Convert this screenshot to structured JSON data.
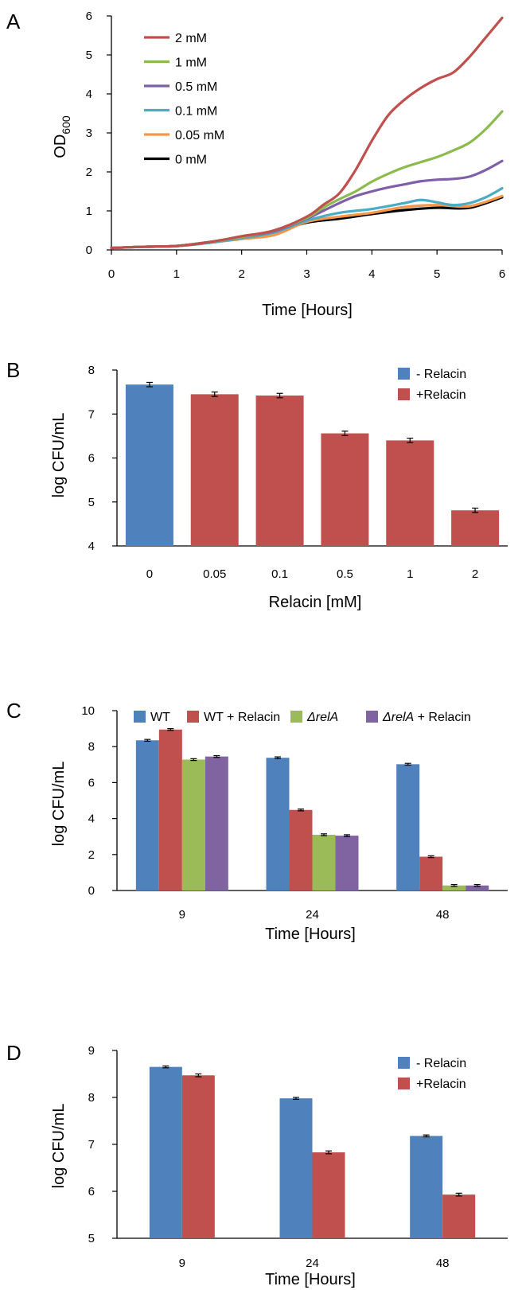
{
  "panels": [
    {
      "id": "panelA",
      "letter": "A"
    },
    {
      "id": "panelB",
      "letter": "B"
    },
    {
      "id": "panelC",
      "letter": "C"
    },
    {
      "id": "panelD",
      "letter": "D"
    }
  ],
  "chart_data": [
    {
      "panel": "A",
      "type": "line",
      "xlabel": "Time [Hours]",
      "ylabel": "OD",
      "ylabel_sub": "600",
      "xlim": [
        0,
        6
      ],
      "ylim": [
        0,
        6
      ],
      "xticks": [
        0,
        1,
        2,
        3,
        4,
        5,
        6
      ],
      "yticks": [
        0,
        1,
        2,
        3,
        4,
        5,
        6
      ],
      "grid": false,
      "legend_position": "top-left",
      "series": [
        {
          "name": "2 mM",
          "color": "#c0504d",
          "x": [
            0,
            0.5,
            1,
            1.5,
            2,
            2.5,
            3,
            3.25,
            3.5,
            3.75,
            4,
            4.25,
            4.5,
            4.75,
            5,
            5.25,
            5.5,
            5.75,
            6
          ],
          "y": [
            0.05,
            0.08,
            0.1,
            0.2,
            0.35,
            0.5,
            0.85,
            1.15,
            1.45,
            2.05,
            2.8,
            3.45,
            3.85,
            4.15,
            4.38,
            4.55,
            4.95,
            5.45,
            5.95
          ]
        },
        {
          "name": "1 mM",
          "color": "#8cba4f",
          "x": [
            0,
            0.5,
            1,
            1.5,
            2,
            2.5,
            3,
            3.25,
            3.5,
            3.75,
            4,
            4.25,
            4.5,
            4.75,
            5,
            5.25,
            5.5,
            5.75,
            6
          ],
          "y": [
            0.05,
            0.08,
            0.1,
            0.2,
            0.33,
            0.5,
            0.82,
            1.08,
            1.3,
            1.5,
            1.75,
            1.95,
            2.12,
            2.25,
            2.38,
            2.55,
            2.75,
            3.1,
            3.55
          ]
        },
        {
          "name": "0.5 mM",
          "color": "#7f5fa8",
          "x": [
            0,
            0.5,
            1,
            1.5,
            2,
            2.5,
            3,
            3.25,
            3.5,
            3.75,
            4,
            4.25,
            4.5,
            4.75,
            5,
            5.25,
            5.5,
            5.75,
            6
          ],
          "y": [
            0.05,
            0.08,
            0.1,
            0.2,
            0.33,
            0.48,
            0.8,
            1.0,
            1.2,
            1.38,
            1.5,
            1.6,
            1.68,
            1.76,
            1.8,
            1.82,
            1.88,
            2.05,
            2.28
          ]
        },
        {
          "name": "0.1 mM",
          "color": "#4bacc6",
          "x": [
            0,
            0.5,
            1,
            1.5,
            2,
            2.5,
            3,
            3.5,
            4,
            4.5,
            4.75,
            5,
            5.25,
            5.5,
            5.75,
            6
          ],
          "y": [
            0.05,
            0.08,
            0.1,
            0.18,
            0.3,
            0.45,
            0.75,
            0.95,
            1.05,
            1.2,
            1.28,
            1.22,
            1.15,
            1.2,
            1.35,
            1.58
          ]
        },
        {
          "name": "0.05 mM",
          "color": "#f79646",
          "x": [
            0,
            0.5,
            1,
            1.5,
            2,
            2.5,
            3,
            3.5,
            4,
            4.5,
            5,
            5.5,
            6
          ],
          "y": [
            0.05,
            0.08,
            0.1,
            0.18,
            0.28,
            0.38,
            0.72,
            0.85,
            0.95,
            1.1,
            1.15,
            1.12,
            1.38
          ]
        },
        {
          "name": "0 mM",
          "color": "#000000",
          "x": [
            0,
            0.5,
            1,
            1.5,
            2,
            2.5,
            3,
            3.5,
            4,
            4.5,
            5,
            5.5,
            6
          ],
          "y": [
            0.05,
            0.08,
            0.1,
            0.2,
            0.3,
            0.45,
            0.7,
            0.8,
            0.92,
            1.02,
            1.08,
            1.08,
            1.35
          ]
        }
      ]
    },
    {
      "panel": "B",
      "type": "bar",
      "xlabel": "Relacin [mM]",
      "ylabel": "log CFU/mL",
      "ylim": [
        4,
        8
      ],
      "yticks": [
        4,
        5,
        6,
        7,
        8
      ],
      "grid": false,
      "legend_position": "top-right",
      "categories": [
        "0",
        "0.05",
        "0.1",
        "0.5",
        "1",
        "2"
      ],
      "legend": [
        {
          "name": "- Relacin",
          "color": "#4f81bd"
        },
        {
          "name": "+Relacin",
          "color": "#c0504d"
        }
      ],
      "values": [
        7.67,
        7.45,
        7.42,
        6.56,
        6.4,
        4.81
      ],
      "errors": [
        0.05,
        0.05,
        0.05,
        0.05,
        0.05,
        0.05
      ],
      "bar_groups": [
        0,
        1,
        1,
        1,
        1,
        1
      ]
    },
    {
      "panel": "C",
      "type": "bar",
      "xlabel": "Time [Hours]",
      "ylabel": "log CFU/mL",
      "ylim": [
        0,
        10
      ],
      "yticks": [
        0,
        2,
        4,
        6,
        8,
        10
      ],
      "grid": false,
      "legend_position": "top",
      "categories": [
        "9",
        "24",
        "48"
      ],
      "series": [
        {
          "name": "WT",
          "color": "#4f81bd",
          "values": [
            8.35,
            7.38,
            7.02
          ],
          "errors": [
            0.05,
            0.05,
            0.05
          ]
        },
        {
          "name": "WT + Relacin",
          "color": "#c0504d",
          "values": [
            8.95,
            4.48,
            1.88
          ],
          "errors": [
            0.05,
            0.05,
            0.05
          ]
        },
        {
          "name": "ΔrelA",
          "italic": "ΔrelA",
          "suffix": "",
          "color": "#9bbb59",
          "values": [
            7.28,
            3.1,
            0.28
          ],
          "errors": [
            0.05,
            0.05,
            0.05
          ]
        },
        {
          "name": "ΔrelA + Relacin",
          "italic": "ΔrelA",
          "suffix": " + Relacin",
          "color": "#8064a2",
          "values": [
            7.45,
            3.05,
            0.28
          ],
          "errors": [
            0.05,
            0.05,
            0.05
          ]
        }
      ]
    },
    {
      "panel": "D",
      "type": "bar",
      "xlabel": "Time [Hours]",
      "ylabel": "log CFU/mL",
      "ylim": [
        5,
        9
      ],
      "yticks": [
        5,
        6,
        7,
        8,
        9
      ],
      "grid": false,
      "legend_position": "top-right",
      "categories": [
        "9",
        "24",
        "48"
      ],
      "series": [
        {
          "name": "- Relacin",
          "color": "#4f81bd",
          "values": [
            8.65,
            7.98,
            7.18
          ],
          "errors": [
            0.02,
            0.02,
            0.02
          ]
        },
        {
          "name": "+Relacin",
          "color": "#c0504d",
          "values": [
            8.47,
            6.83,
            5.93
          ],
          "errors": [
            0.03,
            0.03,
            0.03
          ]
        }
      ]
    }
  ]
}
